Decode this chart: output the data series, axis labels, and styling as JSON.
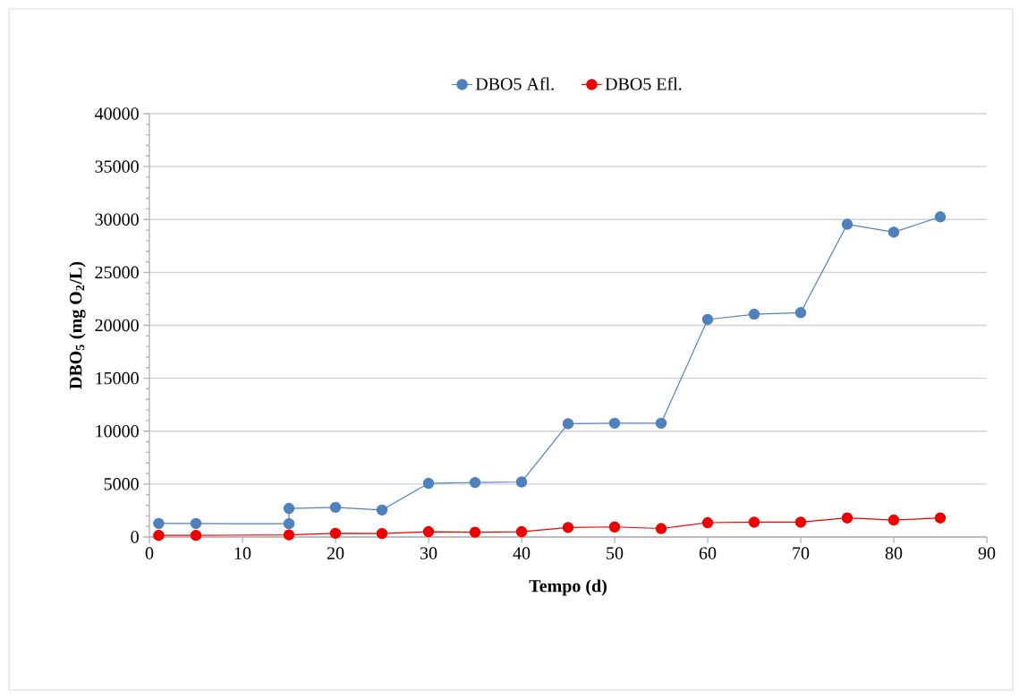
{
  "chart_data": {
    "type": "line",
    "xlabel": "Tempo (d)",
    "ylabel": "DBO$_{5}$ (mg O$_{2}$/L)",
    "xlim": [
      0,
      90
    ],
    "xticks": [
      0,
      10,
      20,
      30,
      40,
      50,
      60,
      70,
      80,
      90
    ],
    "ylim": [
      0,
      40000
    ],
    "yticks": [
      0,
      5000,
      10000,
      15000,
      20000,
      25000,
      30000,
      35000,
      40000
    ],
    "grid": "y",
    "legend": "top",
    "marker": "circle",
    "line_style": "solid",
    "series": [
      {
        "name": "DBO5 Afl.",
        "color": "#4f81bd",
        "x": [
          1,
          5,
          15,
          15,
          20,
          25,
          30,
          35,
          40,
          45,
          50,
          55,
          60,
          65,
          70,
          75,
          80,
          85
        ],
        "values": [
          1270,
          1270,
          1250,
          2700,
          2800,
          2550,
          5070,
          5150,
          5200,
          10700,
          10750,
          10750,
          20550,
          21050,
          21200,
          29550,
          28800,
          30250
        ]
      },
      {
        "name": "DBO5 Efl.",
        "color": "#ee0000",
        "x": [
          1,
          5,
          15,
          20,
          25,
          30,
          35,
          40,
          45,
          50,
          55,
          60,
          65,
          70,
          75,
          80,
          85
        ],
        "values": [
          150,
          150,
          200,
          350,
          330,
          500,
          450,
          500,
          900,
          950,
          800,
          1350,
          1400,
          1400,
          1800,
          1600,
          1800
        ]
      }
    ]
  }
}
